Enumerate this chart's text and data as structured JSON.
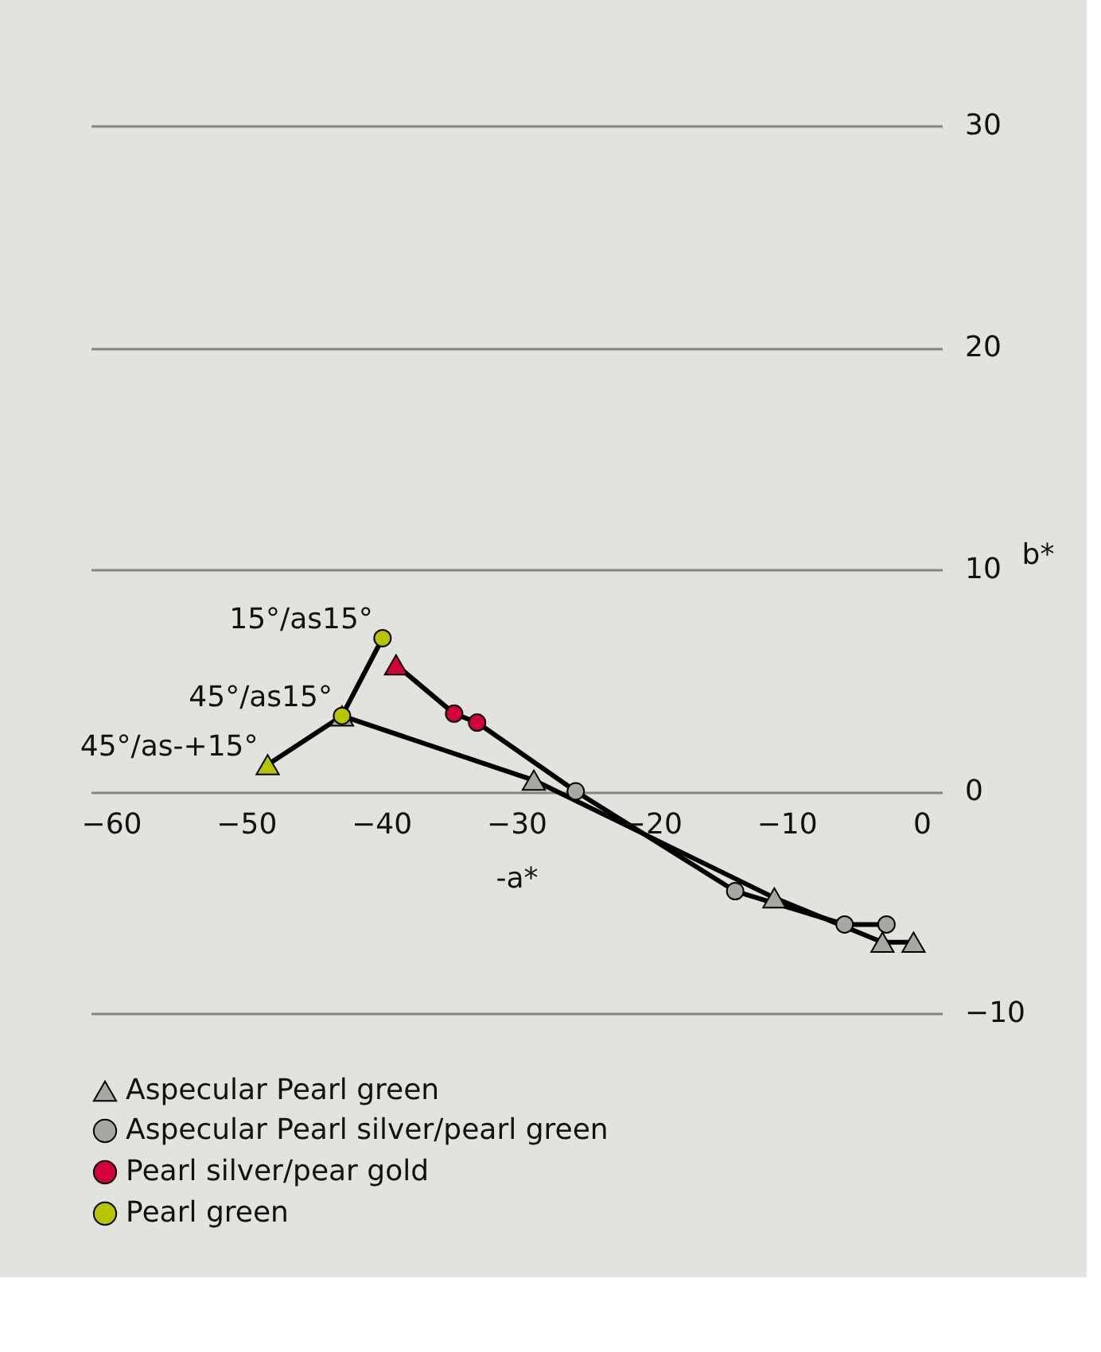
{
  "chart_data": {
    "type": "scatter",
    "xlabel": "-a*",
    "ylabel": "b*",
    "xlim": [
      -61.5,
      1.5
    ],
    "ylim": [
      -10,
      30
    ],
    "xticks": [
      -60,
      -50,
      -40,
      -30,
      -20,
      -10,
      0
    ],
    "yticks": [
      -10,
      0,
      10,
      20,
      30
    ],
    "grid": "y",
    "legend": "bottom",
    "series": [
      {
        "type": "line",
        "color": "#000000",
        "marker": "none",
        "x": [
          -48.4,
          -42.9,
          -39.9
        ],
        "values": [
          1.2,
          3.4,
          6.9
        ]
      },
      {
        "type": "line",
        "color": "#000000",
        "marker": "none",
        "x": [
          -42.9,
          -28.7,
          -10.9,
          -2.9,
          -0.6
        ],
        "values": [
          3.4,
          0.5,
          -4.8,
          -6.8,
          -6.8
        ]
      },
      {
        "type": "line",
        "color": "#000000",
        "marker": "none",
        "x": [
          -38.9,
          -34.6,
          -32.9,
          -25.6,
          -13.8,
          -5.7,
          -2.6
        ],
        "values": [
          5.7,
          3.5,
          3.1,
          0,
          -4.5,
          -6.0,
          -6.0
        ]
      },
      {
        "name": "Aspecular Pearl green",
        "color": "#a8a8a0",
        "marker": "triangle",
        "x": [
          -42.9,
          -28.7,
          -10.9,
          -2.9,
          -0.6
        ],
        "values": [
          3.4,
          0.5,
          -4.8,
          -6.8,
          -6.8
        ]
      },
      {
        "color": "#d4003a",
        "marker": "triangle",
        "x": [
          -38.9
        ],
        "values": [
          5.7
        ]
      },
      {
        "color": "#b8c400",
        "marker": "triangle",
        "x": [
          -48.4
        ],
        "values": [
          1.2
        ]
      },
      {
        "name": "Aspecular Pearl silver/pearl green",
        "color": "#a8a8a0",
        "marker": "circle",
        "x": [
          -25.6,
          -13.8,
          -5.7,
          -2.6
        ],
        "values": [
          0,
          -4.5,
          -6.0,
          -6.0
        ]
      },
      {
        "name": "Pearl silver/pear gold",
        "color": "#d4003a",
        "marker": "circle",
        "x": [
          -34.6,
          -32.9
        ],
        "values": [
          3.5,
          3.1
        ]
      },
      {
        "name": "Pearl green",
        "color": "#b8c400",
        "marker": "circle",
        "x": [
          -42.9,
          -39.9
        ],
        "values": [
          3.4,
          6.9
        ]
      }
    ],
    "annotations": [
      {
        "text": "15°/as15°",
        "x": -39.9,
        "y": 6.9
      },
      {
        "text": "45°/as15°",
        "x": -42.9,
        "y": 3.4
      },
      {
        "text": "45°/as-+15°",
        "x": -48.4,
        "y": 1.2
      }
    ]
  }
}
